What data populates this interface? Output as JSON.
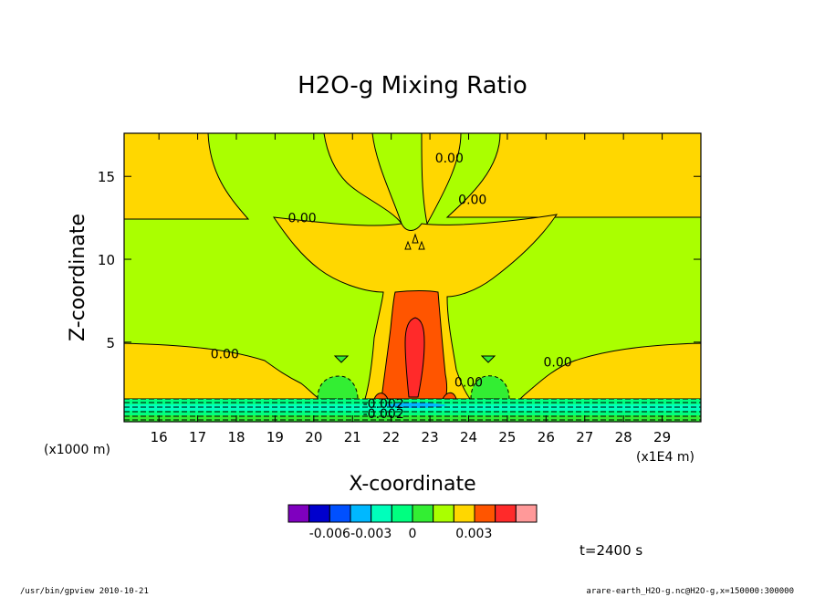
{
  "chart_data": {
    "type": "heatmap",
    "title": "H2O-g Mixing Ratio",
    "xlabel": "X-coordinate",
    "ylabel": "Z-coordinate",
    "x_unit_left": "(x1000 m)",
    "x_unit_right": "(x1E4 m)",
    "xlim": [
      15.1,
      30.0
    ],
    "ylim": [
      0.2,
      17.6
    ],
    "x_ticks": [
      16,
      17,
      18,
      19,
      20,
      21,
      22,
      23,
      24,
      25,
      26,
      27,
      28,
      29
    ],
    "y_ticks": [
      5,
      10,
      15
    ],
    "contour_labels": [
      {
        "text": "0.00",
        "x": 19.7,
        "y": 12.5
      },
      {
        "text": "0.00",
        "x": 17.7,
        "y": 4.3
      },
      {
        "text": "0.00",
        "x": 23.5,
        "y": 16.1
      },
      {
        "text": "0.00",
        "x": 24.1,
        "y": 13.6
      },
      {
        "text": "0.00",
        "x": 24.0,
        "y": 2.6
      },
      {
        "text": "0.00",
        "x": 26.3,
        "y": 3.8
      },
      {
        "text": "-0.002",
        "x": 21.8,
        "y": 1.3
      },
      {
        "text": "-0.002",
        "x": 21.8,
        "y": 0.7
      }
    ],
    "colorbar": {
      "colors": [
        "#7f00bf",
        "#0000cd",
        "#0050ff",
        "#00b8ff",
        "#00ffbb",
        "#00ff80",
        "#33ee33",
        "#aaff00",
        "#ffd700",
        "#ff5500",
        "#ff2a2a",
        "#ff9999"
      ],
      "tick_labels": [
        "-0.006",
        "-0.003",
        "0",
        "0.003"
      ]
    },
    "time_label": "t=2400 s"
  },
  "footer": {
    "left": "/usr/bin/gpview   2010-10-21",
    "right": "arare-earth_H2O-g.nc@H2O-g,x=150000:300000"
  }
}
